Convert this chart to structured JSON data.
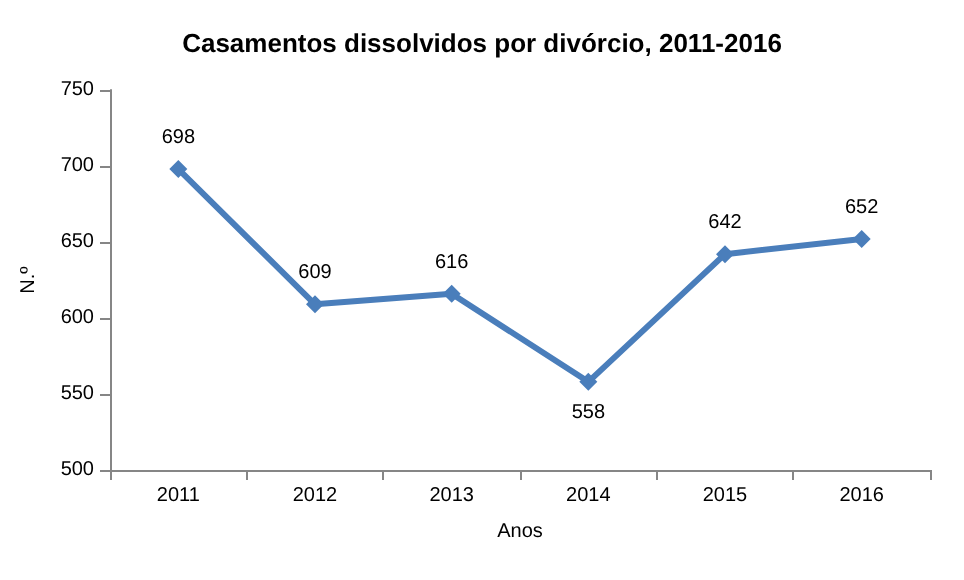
{
  "chart_data": {
    "type": "line",
    "title": "Casamentos dissolvidos por divórcio, 2011-2016",
    "xlabel": "Anos",
    "ylabel": "N.º",
    "categories": [
      "2011",
      "2012",
      "2013",
      "2014",
      "2015",
      "2016"
    ],
    "series": [
      {
        "color": "#4a7ebb",
        "values": [
          698,
          609,
          616,
          558,
          642,
          652
        ]
      }
    ],
    "ylim": [
      500,
      750
    ],
    "yticks": [
      500,
      550,
      600,
      650,
      700,
      750
    ],
    "grid": false,
    "marker": "diamond",
    "line_style": "solid",
    "data_labels": true
  }
}
